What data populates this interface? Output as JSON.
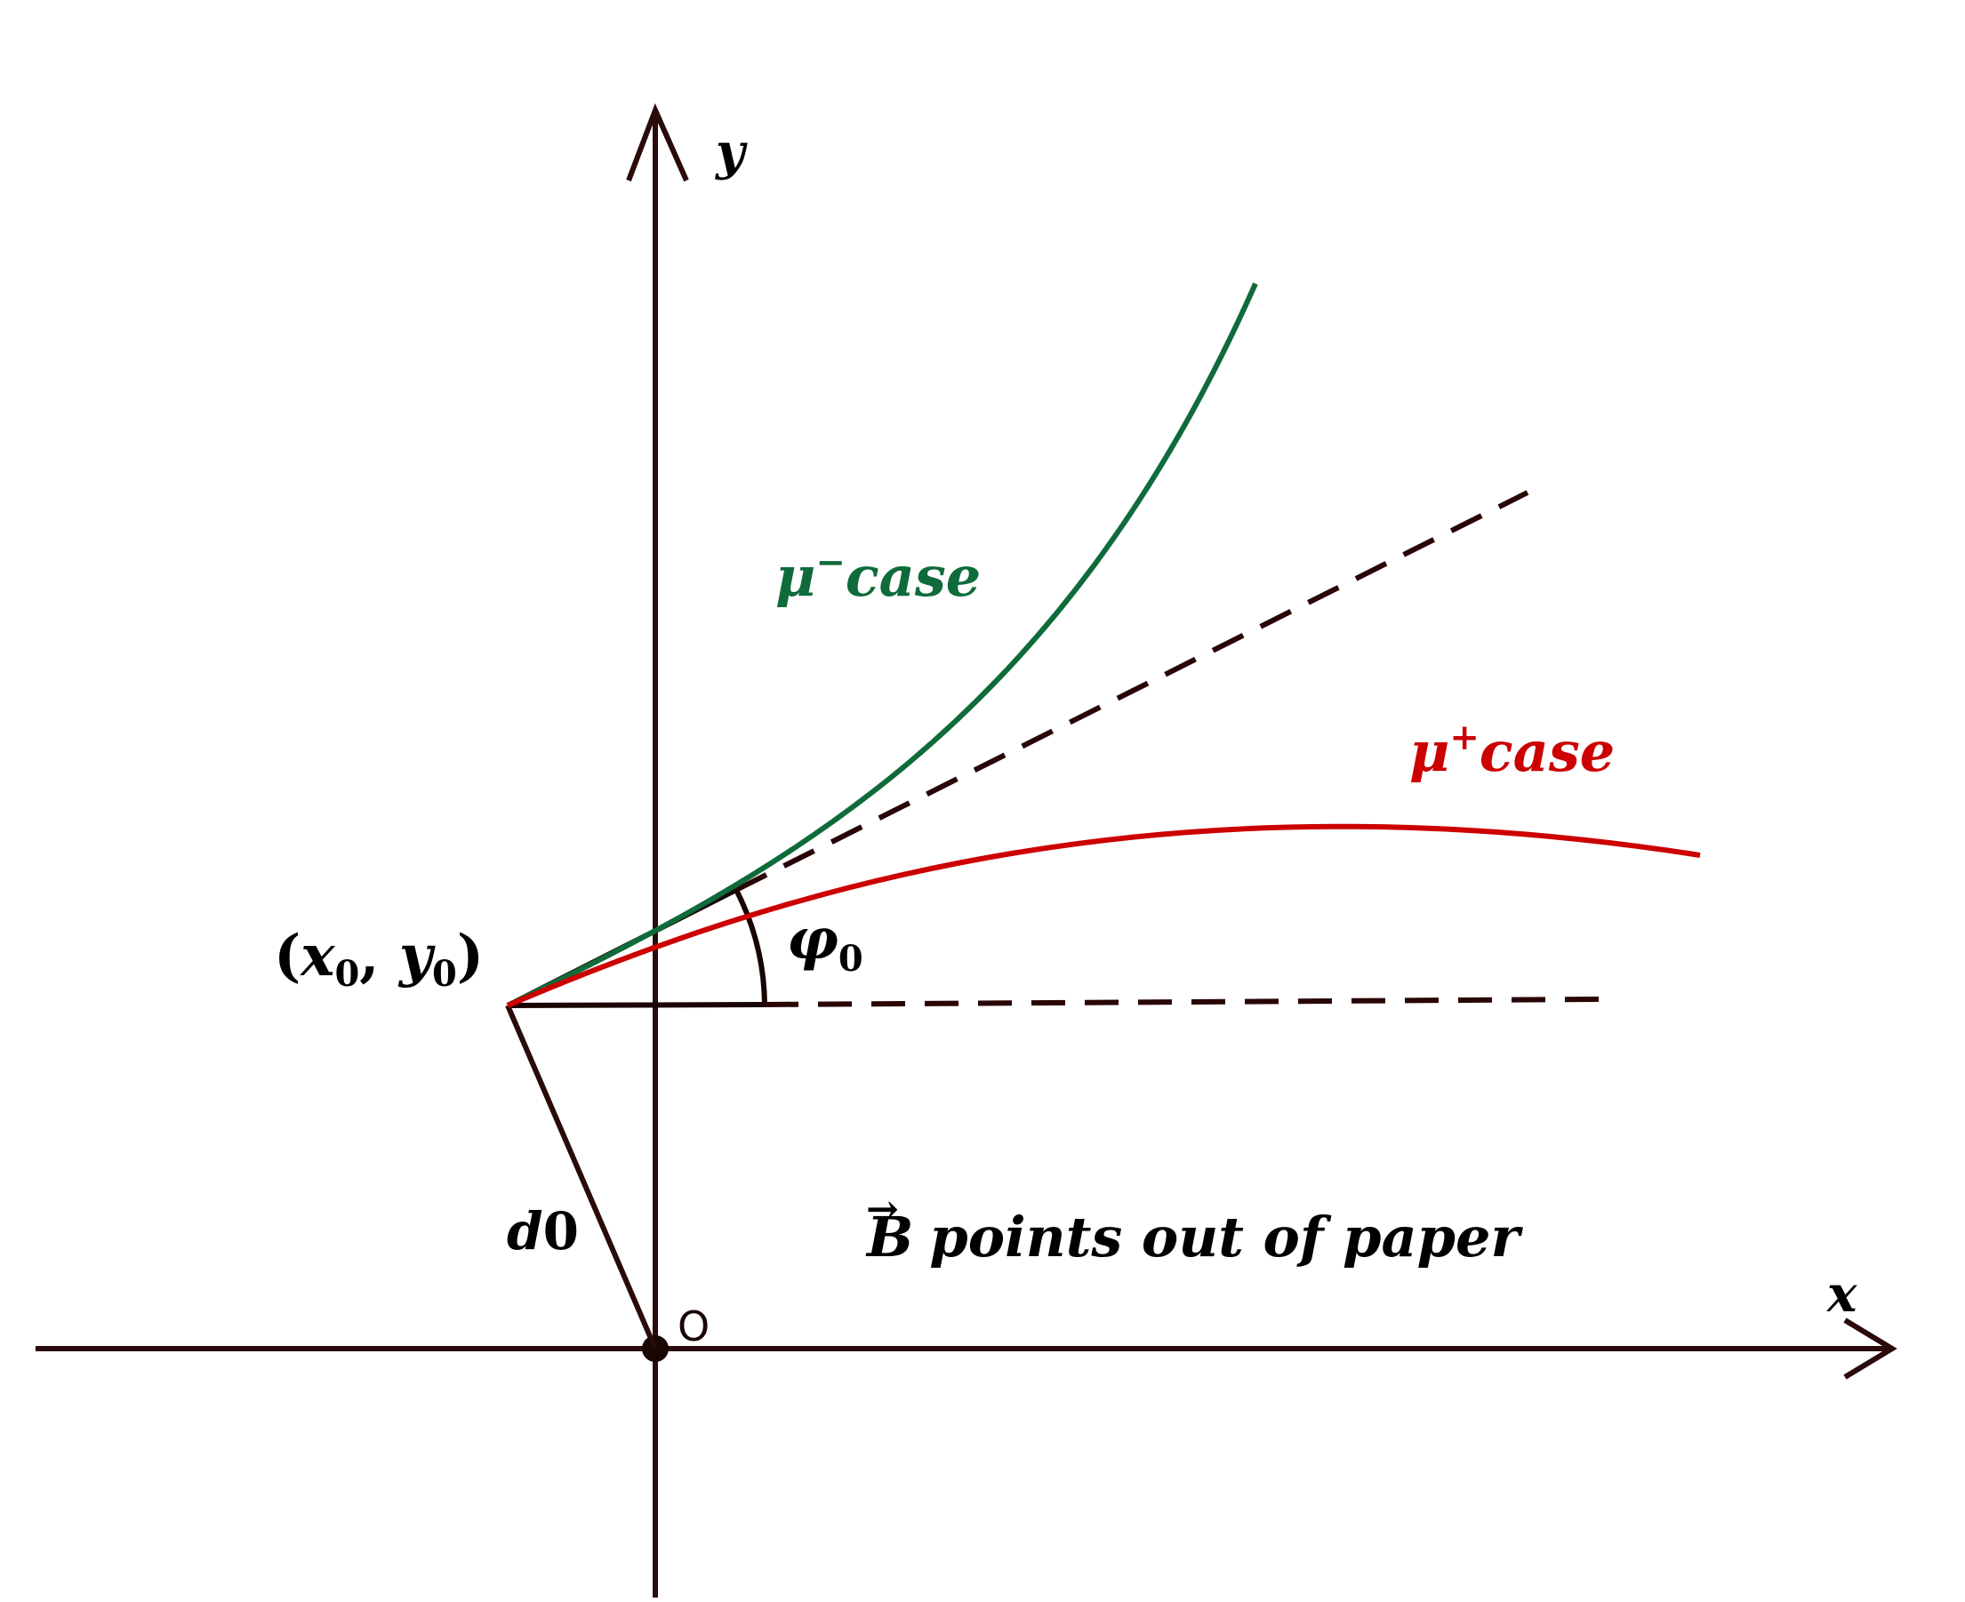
{
  "axes": {
    "x_label": "x",
    "y_label": "y",
    "origin_label": "O"
  },
  "start_point": {
    "label_open": "(",
    "label_x": "x",
    "label_x_sub": "0",
    "label_comma": ", ",
    "label_y": "y",
    "label_y_sub": "0",
    "label_close": ")"
  },
  "angle": {
    "symbol": "φ",
    "subscript": "0"
  },
  "distance": {
    "label_d": "d",
    "label_zero": "0"
  },
  "curves": {
    "mu_minus": {
      "symbol": "μ",
      "superscript": "−",
      "word": "case",
      "color": "#0f6b3a"
    },
    "mu_plus": {
      "symbol": "μ",
      "superscript": "+",
      "word": "case",
      "color": "#cc0000"
    }
  },
  "field_note": {
    "vector_symbol": "B",
    "arrow": "→",
    "text": "points out of paper"
  },
  "colors": {
    "axis": "#2a0a0a",
    "construction": "#1a0505",
    "text": "#000000"
  }
}
